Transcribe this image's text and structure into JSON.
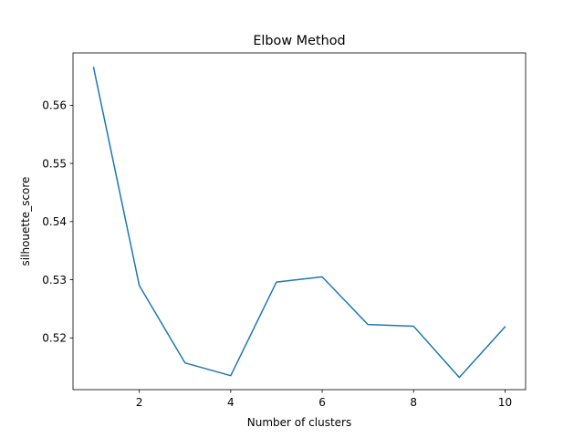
{
  "chart_data": {
    "type": "line",
    "title": "Elbow Method",
    "xlabel": "Number of clusters",
    "ylabel": "silhouette_score",
    "xlim": [
      0.55,
      10.45
    ],
    "ylim": [
      0.5111,
      0.569
    ],
    "xticks": [
      2,
      4,
      6,
      8,
      10
    ],
    "yticks": [
      0.52,
      0.53,
      0.54,
      0.55,
      0.56
    ],
    "grid": false,
    "line_color": "#1f77b4",
    "series": [
      {
        "x": [
          1,
          2,
          3,
          4,
          5,
          6,
          7,
          8,
          9,
          10
        ],
        "values": [
          0.5665,
          0.529,
          0.5157,
          0.5135,
          0.5296,
          0.5305,
          0.5223,
          0.522,
          0.5132,
          0.5219
        ]
      }
    ]
  }
}
